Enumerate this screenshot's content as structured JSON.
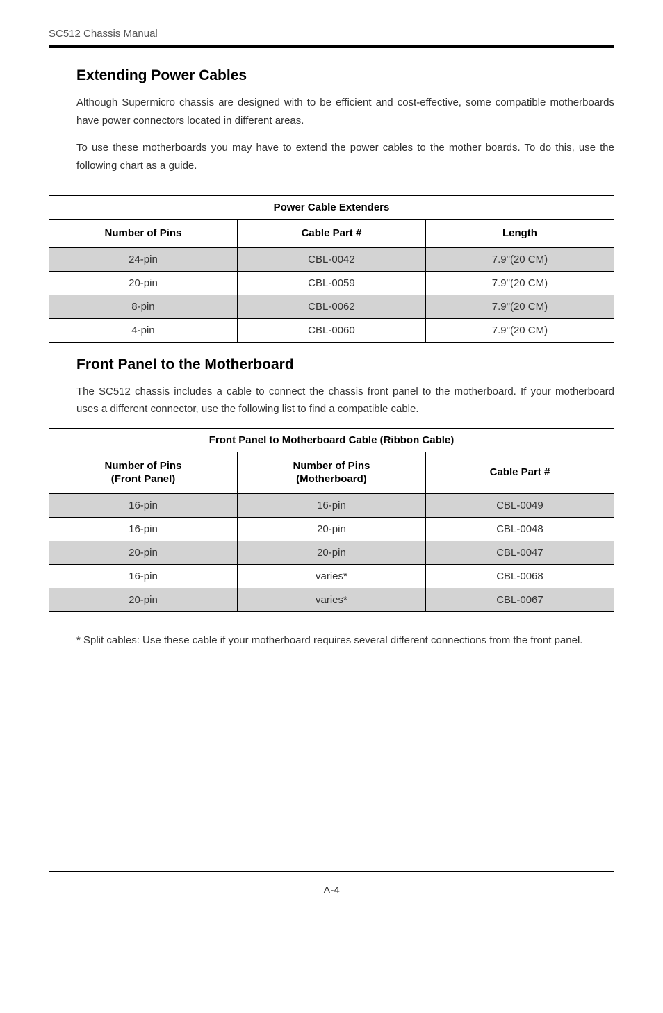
{
  "header": {
    "doc_title": "SC512 Chassis Manual"
  },
  "section1": {
    "heading": "Extending Power Cables",
    "para1": "Although Supermicro chassis are designed with to be efficient and cost-effective, some compatible motherboards have power connectors located in different areas.",
    "para2": "To use these motherboards you may have to extend the power cables to the mother boards. To do this, use the following chart as a guide."
  },
  "table1": {
    "title": "Power Cable Extenders",
    "columns": [
      "Number of Pins",
      "Cable Part #",
      "Length"
    ],
    "rows": [
      {
        "cells": [
          "24-pin",
          "CBL-0042",
          "7.9\"(20 CM)"
        ],
        "shaded": true
      },
      {
        "cells": [
          "20-pin",
          "CBL-0059",
          "7.9\"(20 CM)"
        ],
        "shaded": false
      },
      {
        "cells": [
          "8-pin",
          "CBL-0062",
          "7.9\"(20 CM)"
        ],
        "shaded": true
      },
      {
        "cells": [
          "4-pin",
          "CBL-0060",
          "7.9\"(20 CM)"
        ],
        "shaded": false
      }
    ],
    "col_widths": [
      "33.33%",
      "33.33%",
      "33.34%"
    ]
  },
  "section2": {
    "heading": "Front Panel to the Motherboard",
    "para1": "The SC512 chassis includes a cable to connect the chassis front panel to the motherboard. If your motherboard uses a different connector, use the following list to find a compatible cable."
  },
  "table2": {
    "title": "Front Panel to Motherboard Cable (Ribbon Cable)",
    "columns": [
      "Number of Pins\n(Front Panel)",
      "Number of Pins\n(Motherboard)",
      "Cable Part #"
    ],
    "rows": [
      {
        "cells": [
          "16-pin",
          "16-pin",
          "CBL-0049"
        ],
        "shaded": true
      },
      {
        "cells": [
          "16-pin",
          "20-pin",
          "CBL-0048"
        ],
        "shaded": false
      },
      {
        "cells": [
          "20-pin",
          "20-pin",
          "CBL-0047"
        ],
        "shaded": true
      },
      {
        "cells": [
          "16-pin",
          "varies*",
          "CBL-0068"
        ],
        "shaded": false
      },
      {
        "cells": [
          "20-pin",
          "varies*",
          "CBL-0067"
        ],
        "shaded": true
      }
    ],
    "col_widths": [
      "33.33%",
      "33.33%",
      "33.34%"
    ]
  },
  "footnote": {
    "text": "* Split cables: Use these cable if your motherboard requires several different connections from the front panel."
  },
  "footer": {
    "page_num": "A-4"
  },
  "colors": {
    "text_body": "#333333",
    "text_header": "#555555",
    "rule_thick": "#000000",
    "rule_thin": "#000000",
    "shaded_row": "#d3d3d3",
    "border": "#000000",
    "background": "#ffffff"
  },
  "typography": {
    "body_fontsize": 15,
    "heading_fontsize": 21,
    "heading_weight": "bold",
    "font_family": "Arial, Helvetica, sans-serif"
  }
}
